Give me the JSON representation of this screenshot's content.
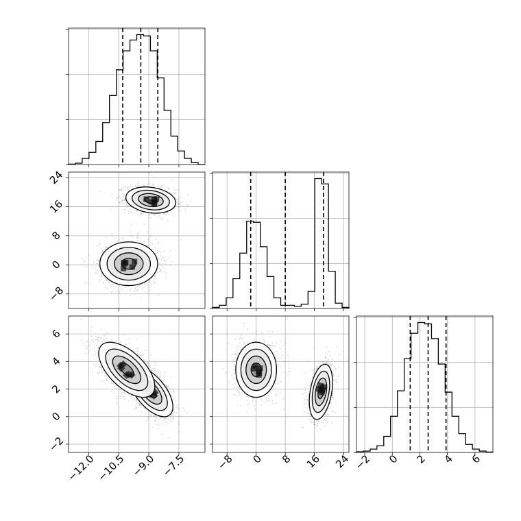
{
  "chart_data": {
    "type": "corner",
    "parameters": [
      {
        "index": 0,
        "range": [
          -13.0,
          -6.2
        ],
        "ticks": [
          -12.0,
          -10.5,
          -9.0,
          -7.5
        ],
        "tick_labels": [
          "−12.0",
          "−10.5",
          "−9.0",
          "−7.5"
        ],
        "quantiles": [
          -10.3,
          -9.4,
          -8.55
        ],
        "histogram": {
          "bin_edges": [
            -13.0,
            -12.66,
            -12.32,
            -11.98,
            -11.64,
            -11.3,
            -10.96,
            -10.62,
            -10.28,
            -9.94,
            -9.6,
            -9.26,
            -8.92,
            -8.58,
            -8.24,
            -7.9,
            -7.56,
            -7.22,
            -6.88,
            -6.54,
            -6.2
          ],
          "counts": [
            0.3,
            1.0,
            4.5,
            9,
            17,
            31,
            51,
            70,
            84,
            92,
            96,
            95,
            84,
            64,
            40,
            21,
            10,
            4.5,
            1.5,
            0
          ]
        }
      },
      {
        "index": 1,
        "range": [
          -12.0,
          25.5
        ],
        "ticks": [
          -8,
          0,
          8,
          16,
          24
        ],
        "tick_labels": [
          "−8",
          "0",
          "8",
          "16",
          "24"
        ],
        "quantiles": [
          -1.5,
          8.0,
          18.5
        ],
        "histogram": {
          "bin_edges": [
            -12.0,
            -10.125,
            -8.25,
            -6.375,
            -4.5,
            -2.625,
            -0.75,
            1.125,
            3.0,
            4.875,
            6.75,
            8.625,
            10.5,
            12.375,
            14.25,
            16.125,
            18.0,
            19.875,
            21.75,
            23.625,
            25.5
          ],
          "counts": [
            1,
            3,
            10,
            28,
            52,
            82,
            81,
            58,
            30,
            10,
            3,
            3,
            2,
            4,
            16,
            122,
            117,
            35,
            5,
            1
          ]
        }
      },
      {
        "index": 2,
        "range": [
          -2.6,
          7.3
        ],
        "ticks": [
          -2,
          0,
          2,
          4,
          6
        ],
        "tick_labels": [
          "−2",
          "0",
          "2",
          "4",
          "6"
        ],
        "quantiles": [
          1.3,
          2.6,
          3.9
        ],
        "histogram": {
          "bin_edges": [
            -2.6,
            -2.105,
            -1.61,
            -1.115,
            -0.62,
            -0.125,
            0.37,
            0.865,
            1.36,
            1.855,
            2.35,
            2.845,
            3.34,
            3.835,
            4.33,
            4.825,
            5.32,
            5.815,
            6.31,
            6.805,
            7.3
          ],
          "counts": [
            0.5,
            1,
            2.5,
            5,
            12,
            27,
            46,
            70,
            89,
            97,
            96,
            85,
            66,
            45,
            27,
            14,
            6,
            2.5,
            1,
            0.3
          ]
        }
      }
    ],
    "panels_2d": [
      {
        "x_param": 0,
        "y_param": 1,
        "modes": [
          {
            "x_mean": -8.9,
            "y_mean": 17.8,
            "x_sd": 0.62,
            "y_sd": 1.8,
            "corr": -0.2,
            "weight": 0.5
          },
          {
            "x_mean": -10.0,
            "y_mean": 0.3,
            "x_sd": 0.72,
            "y_sd": 3.0,
            "corr": 0.0,
            "weight": 0.5
          }
        ]
      },
      {
        "x_param": 0,
        "y_param": 2,
        "modes": [
          {
            "x_mean": -8.9,
            "y_mean": 1.8,
            "x_sd": 0.55,
            "y_sd": 0.9,
            "corr": -0.6,
            "weight": 0.5
          },
          {
            "x_mean": -10.1,
            "y_mean": 3.4,
            "x_sd": 0.7,
            "y_sd": 1.0,
            "corr": -0.6,
            "weight": 0.5
          }
        ]
      },
      {
        "x_param": 1,
        "y_param": 2,
        "modes": [
          {
            "x_mean": 0.0,
            "y_mean": 3.4,
            "x_sd": 2.8,
            "y_sd": 1.0,
            "corr": 0.0,
            "weight": 0.5
          },
          {
            "x_mean": 17.8,
            "y_mean": 1.8,
            "x_sd": 1.6,
            "y_sd": 1.0,
            "corr": 0.35,
            "weight": 0.5
          }
        ]
      }
    ],
    "contour_levels_sigma": [
      0.5,
      1.0,
      1.5,
      2.0
    ],
    "grid": true
  }
}
